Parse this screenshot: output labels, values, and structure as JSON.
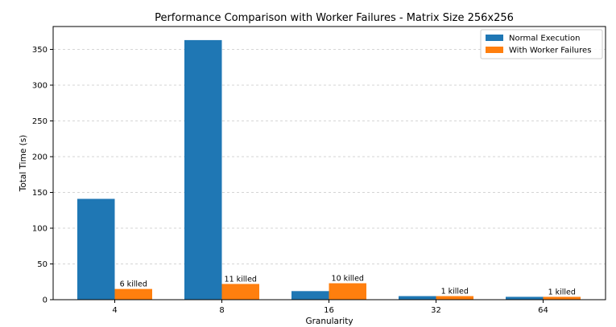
{
  "chart_data": {
    "type": "bar",
    "title": "Performance Comparison with Worker Failures - Matrix Size 256x256",
    "xlabel": "Granularity",
    "ylabel": "Total Time (s)",
    "categories": [
      "4",
      "8",
      "16",
      "32",
      "64"
    ],
    "ylim": [
      0,
      382
    ],
    "yticks": [
      0,
      50,
      100,
      150,
      200,
      250,
      300,
      350
    ],
    "grid": "horizontal dashed",
    "legend_position": "top-right",
    "series": [
      {
        "name": "Normal Execution",
        "color": "#1f77b4",
        "values": [
          141,
          363,
          12,
          5,
          4
        ]
      },
      {
        "name": "With Worker Failures",
        "color": "#ff7f0e",
        "values": [
          15,
          22,
          23,
          5,
          4
        ]
      }
    ],
    "annotations": [
      {
        "category": "4",
        "series": "With Worker Failures",
        "text": "6 killed"
      },
      {
        "category": "8",
        "series": "With Worker Failures",
        "text": "11 killed"
      },
      {
        "category": "16",
        "series": "With Worker Failures",
        "text": "10 killed"
      },
      {
        "category": "32",
        "series": "With Worker Failures",
        "text": "1 killed"
      },
      {
        "category": "64",
        "series": "With Worker Failures",
        "text": "1 killed"
      }
    ]
  }
}
